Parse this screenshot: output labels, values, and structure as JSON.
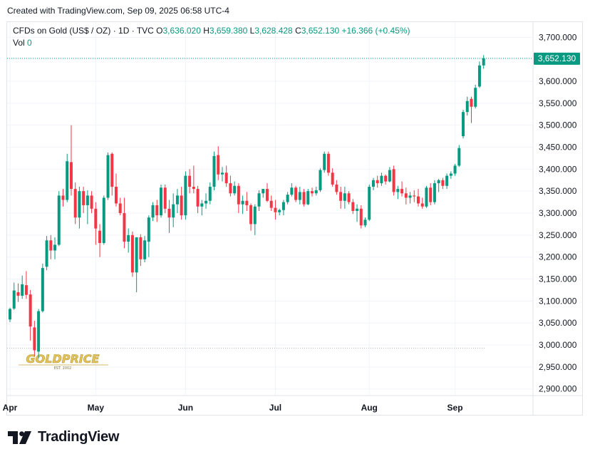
{
  "header": {
    "created_text": "Created with TradingView.com, Sep 09, 2025 06:58 UTC-4"
  },
  "legend": {
    "symbol": "CFDs on Gold (US$ / OZ) · 1D · TVC",
    "o_label": "O",
    "o_value": "3,636.020",
    "h_label": "H",
    "h_value": "3,659.380",
    "l_label": "L",
    "l_value": "3,628.428",
    "c_label": "C",
    "c_value": "3,652.130",
    "change": "+16.366 (+0.45%)",
    "vol_label": "Vol",
    "vol_value": "0"
  },
  "footer": {
    "brand": "TradingView"
  },
  "colors": {
    "up": "#089981",
    "down": "#f23645",
    "grid": "#f0f3fa",
    "text": "#131722"
  },
  "chart_data": {
    "type": "candlestick",
    "x_axis_labels": [
      "Apr",
      "May",
      "Jun",
      "Jul",
      "Aug",
      "Sep"
    ],
    "x_axis_label_index": [
      0,
      21,
      43,
      65,
      88,
      109
    ],
    "y_ticks": [
      2900,
      2950,
      3000,
      3050,
      3100,
      3150,
      3200,
      3250,
      3300,
      3350,
      3400,
      3450,
      3500,
      3550,
      3600,
      3650,
      3700
    ],
    "y_range": [
      2880,
      3725
    ],
    "last_price": 3652.13,
    "last_price_label": "3,652.130",
    "reference_price": 2993,
    "watermark": "GOLDPRICE",
    "watermark_sub": "EST. 2002",
    "candles": [
      {
        "o": 3058,
        "h": 3085,
        "l": 3052,
        "c": 3082
      },
      {
        "o": 3083,
        "h": 3142,
        "l": 3080,
        "c": 3124
      },
      {
        "o": 3120,
        "h": 3140,
        "l": 3098,
        "c": 3112
      },
      {
        "o": 3112,
        "h": 3158,
        "l": 3105,
        "c": 3138
      },
      {
        "o": 3136,
        "h": 3168,
        "l": 3105,
        "c": 3114
      },
      {
        "o": 3115,
        "h": 3125,
        "l": 3010,
        "c": 3042
      },
      {
        "o": 3040,
        "h": 3055,
        "l": 2975,
        "c": 2988
      },
      {
        "o": 2985,
        "h": 3082,
        "l": 2970,
        "c": 3077
      },
      {
        "o": 3077,
        "h": 3185,
        "l": 3074,
        "c": 3175
      },
      {
        "o": 3178,
        "h": 3248,
        "l": 3170,
        "c": 3238
      },
      {
        "o": 3238,
        "h": 3250,
        "l": 3195,
        "c": 3215
      },
      {
        "o": 3215,
        "h": 3245,
        "l": 3195,
        "c": 3228
      },
      {
        "o": 3228,
        "h": 3350,
        "l": 3225,
        "c": 3340
      },
      {
        "o": 3340,
        "h": 3355,
        "l": 3315,
        "c": 3330
      },
      {
        "o": 3330,
        "h": 3435,
        "l": 3325,
        "c": 3418
      },
      {
        "o": 3416,
        "h": 3500,
        "l": 3340,
        "c": 3355
      },
      {
        "o": 3355,
        "h": 3370,
        "l": 3275,
        "c": 3290
      },
      {
        "o": 3290,
        "h": 3360,
        "l": 3265,
        "c": 3350
      },
      {
        "o": 3350,
        "h": 3360,
        "l": 3300,
        "c": 3318
      },
      {
        "o": 3318,
        "h": 3352,
        "l": 3275,
        "c": 3340
      },
      {
        "o": 3340,
        "h": 3350,
        "l": 3300,
        "c": 3310
      },
      {
        "o": 3310,
        "h": 3325,
        "l": 3228,
        "c": 3265
      },
      {
        "o": 3260,
        "h": 3275,
        "l": 3200,
        "c": 3232
      },
      {
        "o": 3232,
        "h": 3340,
        "l": 3228,
        "c": 3335
      },
      {
        "o": 3335,
        "h": 3438,
        "l": 3330,
        "c": 3432
      },
      {
        "o": 3435,
        "h": 3438,
        "l": 3340,
        "c": 3360
      },
      {
        "o": 3360,
        "h": 3390,
        "l": 3315,
        "c": 3322
      },
      {
        "o": 3322,
        "h": 3335,
        "l": 3295,
        "c": 3300
      },
      {
        "o": 3300,
        "h": 3335,
        "l": 3220,
        "c": 3235
      },
      {
        "o": 3235,
        "h": 3265,
        "l": 3210,
        "c": 3250
      },
      {
        "o": 3250,
        "h": 3258,
        "l": 3155,
        "c": 3165
      },
      {
        "o": 3165,
        "h": 3245,
        "l": 3120,
        "c": 3245
      },
      {
        "o": 3245,
        "h": 3252,
        "l": 3180,
        "c": 3195
      },
      {
        "o": 3195,
        "h": 3248,
        "l": 3188,
        "c": 3238
      },
      {
        "o": 3235,
        "h": 3295,
        "l": 3200,
        "c": 3290
      },
      {
        "o": 3290,
        "h": 3325,
        "l": 3282,
        "c": 3318
      },
      {
        "o": 3318,
        "h": 3330,
        "l": 3280,
        "c": 3295
      },
      {
        "o": 3295,
        "h": 3365,
        "l": 3290,
        "c": 3358
      },
      {
        "o": 3358,
        "h": 3365,
        "l": 3300,
        "c": 3310
      },
      {
        "o": 3310,
        "h": 3330,
        "l": 3255,
        "c": 3290
      },
      {
        "o": 3290,
        "h": 3345,
        "l": 3268,
        "c": 3320
      },
      {
        "o": 3320,
        "h": 3355,
        "l": 3300,
        "c": 3340
      },
      {
        "o": 3340,
        "h": 3360,
        "l": 3285,
        "c": 3295
      },
      {
        "o": 3295,
        "h": 3395,
        "l": 3285,
        "c": 3385
      },
      {
        "o": 3385,
        "h": 3400,
        "l": 3345,
        "c": 3360
      },
      {
        "o": 3360,
        "h": 3408,
        "l": 3345,
        "c": 3355
      },
      {
        "o": 3355,
        "h": 3362,
        "l": 3300,
        "c": 3315
      },
      {
        "o": 3315,
        "h": 3330,
        "l": 3295,
        "c": 3322
      },
      {
        "o": 3322,
        "h": 3345,
        "l": 3310,
        "c": 3328
      },
      {
        "o": 3328,
        "h": 3370,
        "l": 3320,
        "c": 3360
      },
      {
        "o": 3360,
        "h": 3440,
        "l": 3352,
        "c": 3430
      },
      {
        "o": 3432,
        "h": 3452,
        "l": 3375,
        "c": 3388
      },
      {
        "o": 3388,
        "h": 3405,
        "l": 3372,
        "c": 3392
      },
      {
        "o": 3392,
        "h": 3408,
        "l": 3360,
        "c": 3368
      },
      {
        "o": 3368,
        "h": 3385,
        "l": 3338,
        "c": 3345
      },
      {
        "o": 3345,
        "h": 3372,
        "l": 3340,
        "c": 3362
      },
      {
        "o": 3362,
        "h": 3368,
        "l": 3300,
        "c": 3320
      },
      {
        "o": 3320,
        "h": 3340,
        "l": 3298,
        "c": 3328
      },
      {
        "o": 3328,
        "h": 3348,
        "l": 3305,
        "c": 3318
      },
      {
        "o": 3318,
        "h": 3322,
        "l": 3260,
        "c": 3275
      },
      {
        "o": 3275,
        "h": 3320,
        "l": 3250,
        "c": 3315
      },
      {
        "o": 3315,
        "h": 3352,
        "l": 3305,
        "c": 3345
      },
      {
        "o": 3345,
        "h": 3355,
        "l": 3335,
        "c": 3355
      },
      {
        "o": 3355,
        "h": 3368,
        "l": 3325,
        "c": 3328
      },
      {
        "o": 3328,
        "h": 3340,
        "l": 3305,
        "c": 3312
      },
      {
        "o": 3312,
        "h": 3330,
        "l": 3285,
        "c": 3302
      },
      {
        "o": 3302,
        "h": 3310,
        "l": 3295,
        "c": 3307
      },
      {
        "o": 3307,
        "h": 3330,
        "l": 3295,
        "c": 3325
      },
      {
        "o": 3325,
        "h": 3348,
        "l": 3320,
        "c": 3342
      },
      {
        "o": 3342,
        "h": 3368,
        "l": 3338,
        "c": 3358
      },
      {
        "o": 3358,
        "h": 3362,
        "l": 3325,
        "c": 3330
      },
      {
        "o": 3330,
        "h": 3360,
        "l": 3320,
        "c": 3348
      },
      {
        "o": 3348,
        "h": 3355,
        "l": 3315,
        "c": 3320
      },
      {
        "o": 3320,
        "h": 3355,
        "l": 3318,
        "c": 3350
      },
      {
        "o": 3350,
        "h": 3358,
        "l": 3338,
        "c": 3345
      },
      {
        "o": 3345,
        "h": 3360,
        "l": 3340,
        "c": 3352
      },
      {
        "o": 3352,
        "h": 3402,
        "l": 3348,
        "c": 3398
      },
      {
        "o": 3398,
        "h": 3440,
        "l": 3392,
        "c": 3435
      },
      {
        "o": 3435,
        "h": 3440,
        "l": 3385,
        "c": 3392
      },
      {
        "o": 3392,
        "h": 3402,
        "l": 3360,
        "c": 3365
      },
      {
        "o": 3365,
        "h": 3375,
        "l": 3342,
        "c": 3348
      },
      {
        "o": 3348,
        "h": 3360,
        "l": 3310,
        "c": 3328
      },
      {
        "o": 3328,
        "h": 3360,
        "l": 3310,
        "c": 3345
      },
      {
        "o": 3345,
        "h": 3350,
        "l": 3320,
        "c": 3325
      },
      {
        "o": 3325,
        "h": 3332,
        "l": 3298,
        "c": 3305
      },
      {
        "o": 3305,
        "h": 3320,
        "l": 3280,
        "c": 3310
      },
      {
        "o": 3310,
        "h": 3318,
        "l": 3265,
        "c": 3272
      },
      {
        "o": 3272,
        "h": 3290,
        "l": 3268,
        "c": 3285
      },
      {
        "o": 3285,
        "h": 3365,
        "l": 3282,
        "c": 3360
      },
      {
        "o": 3360,
        "h": 3380,
        "l": 3352,
        "c": 3375
      },
      {
        "o": 3375,
        "h": 3385,
        "l": 3358,
        "c": 3368
      },
      {
        "o": 3368,
        "h": 3392,
        "l": 3362,
        "c": 3385
      },
      {
        "o": 3385,
        "h": 3388,
        "l": 3365,
        "c": 3372
      },
      {
        "o": 3372,
        "h": 3405,
        "l": 3370,
        "c": 3398
      },
      {
        "o": 3400,
        "h": 3408,
        "l": 3340,
        "c": 3348
      },
      {
        "o": 3348,
        "h": 3362,
        "l": 3332,
        "c": 3355
      },
      {
        "o": 3355,
        "h": 3372,
        "l": 3338,
        "c": 3345
      },
      {
        "o": 3345,
        "h": 3358,
        "l": 3320,
        "c": 3335
      },
      {
        "o": 3335,
        "h": 3348,
        "l": 3322,
        "c": 3340
      },
      {
        "o": 3340,
        "h": 3352,
        "l": 3325,
        "c": 3338
      },
      {
        "o": 3338,
        "h": 3355,
        "l": 3315,
        "c": 3322
      },
      {
        "o": 3322,
        "h": 3335,
        "l": 3310,
        "c": 3315
      },
      {
        "o": 3315,
        "h": 3362,
        "l": 3312,
        "c": 3358
      },
      {
        "o": 3358,
        "h": 3368,
        "l": 3318,
        "c": 3325
      },
      {
        "o": 3325,
        "h": 3375,
        "l": 3320,
        "c": 3368
      },
      {
        "o": 3368,
        "h": 3378,
        "l": 3348,
        "c": 3375
      },
      {
        "o": 3375,
        "h": 3380,
        "l": 3355,
        "c": 3362
      },
      {
        "o": 3362,
        "h": 3390,
        "l": 3355,
        "c": 3385
      },
      {
        "o": 3385,
        "h": 3395,
        "l": 3378,
        "c": 3390
      },
      {
        "o": 3390,
        "h": 3412,
        "l": 3385,
        "c": 3408
      },
      {
        "o": 3408,
        "h": 3455,
        "l": 3405,
        "c": 3448
      },
      {
        "o": 3475,
        "h": 3535,
        "l": 3470,
        "c": 3530
      },
      {
        "o": 3530,
        "h": 3565,
        "l": 3522,
        "c": 3555
      },
      {
        "o": 3560,
        "h": 3565,
        "l": 3505,
        "c": 3542
      },
      {
        "o": 3542,
        "h": 3592,
        "l": 3538,
        "c": 3585
      },
      {
        "o": 3588,
        "h": 3645,
        "l": 3585,
        "c": 3636
      },
      {
        "o": 3636.02,
        "h": 3659.38,
        "l": 3628.428,
        "c": 3652.13
      }
    ]
  }
}
